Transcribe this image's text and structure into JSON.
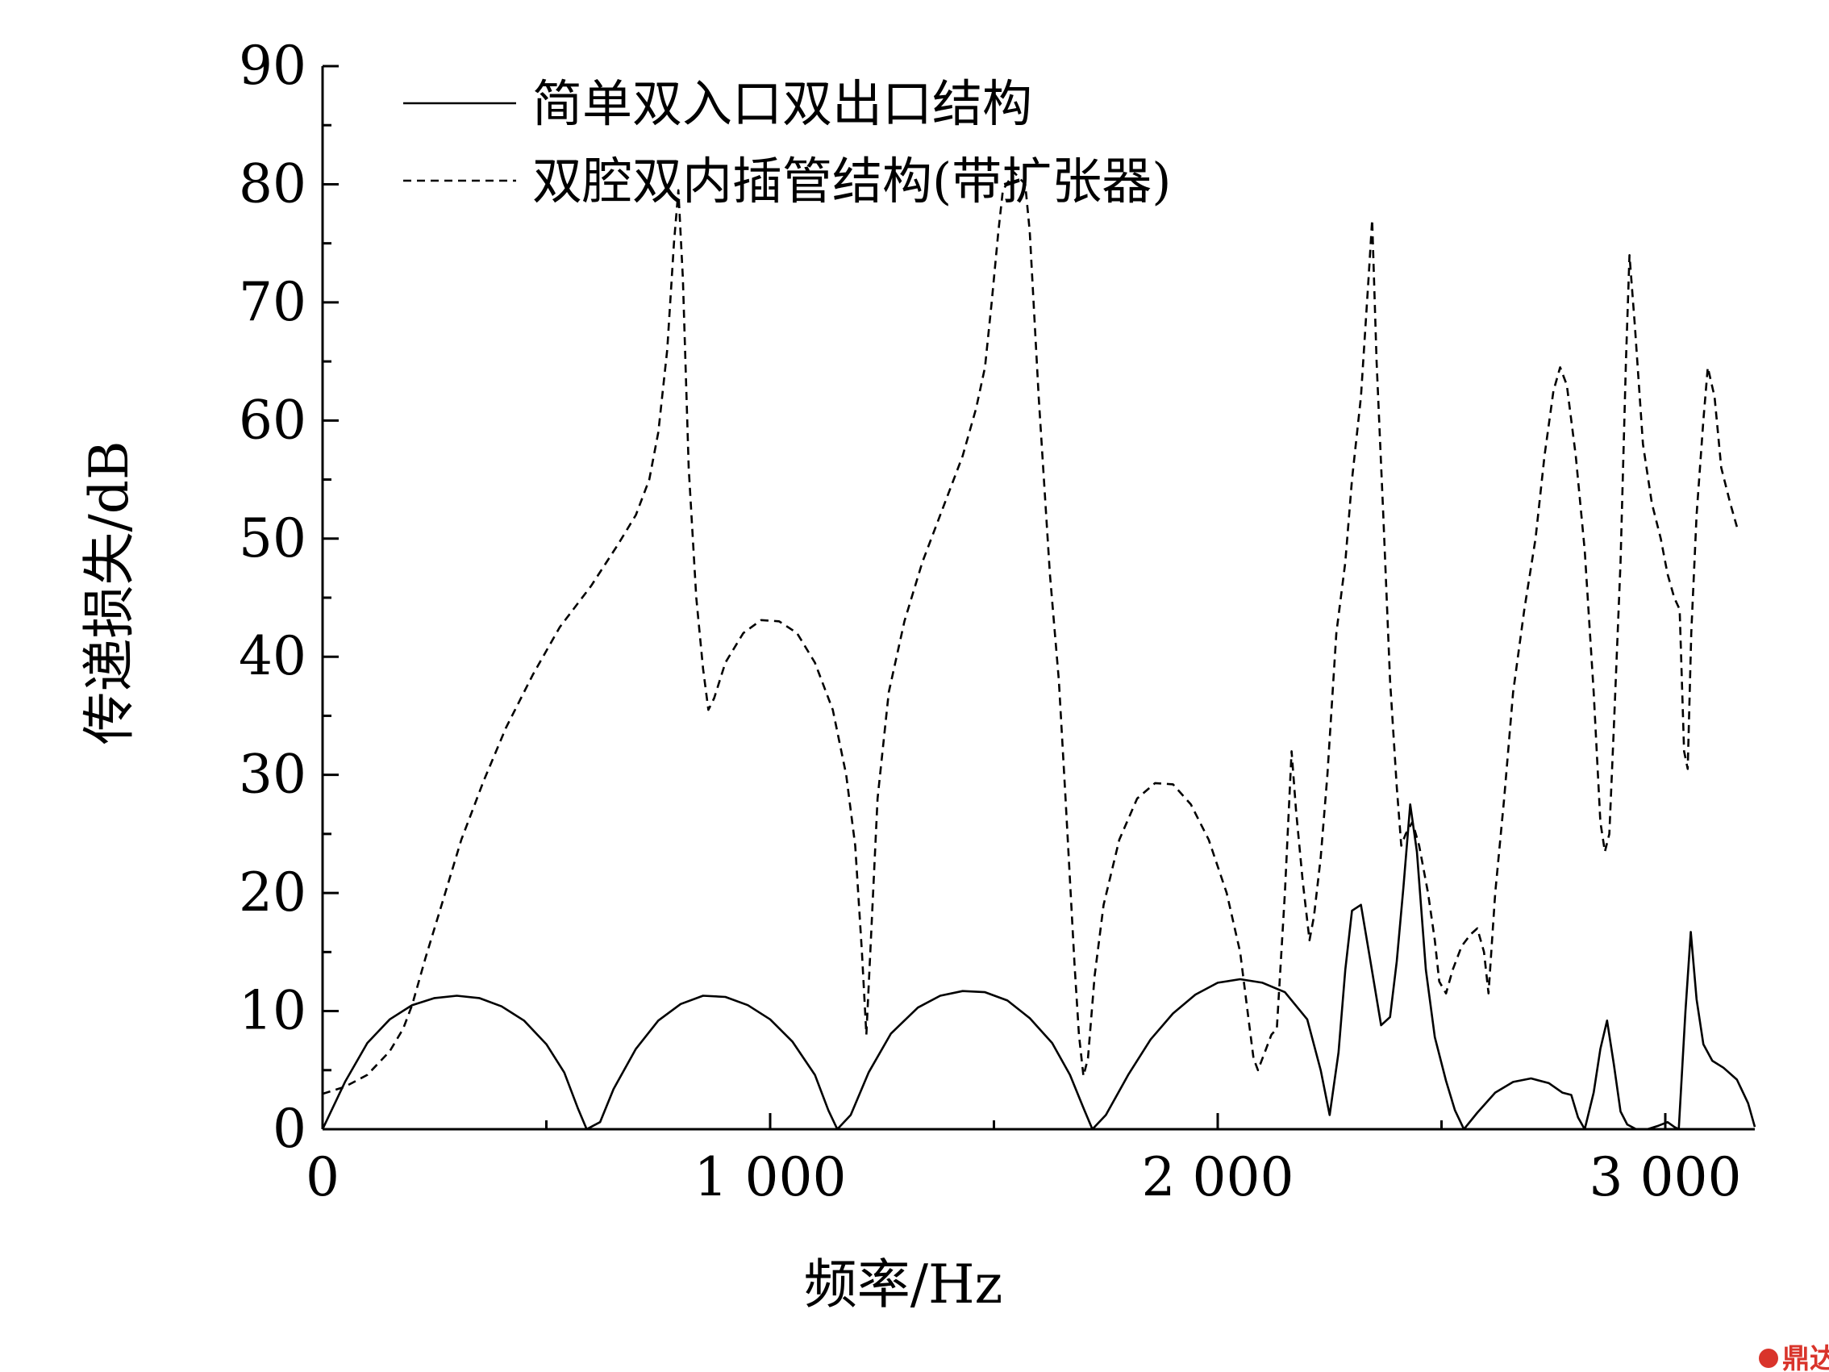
{
  "chart_data": {
    "type": "line",
    "xlabel": "频率/Hz",
    "ylabel": "传递损失/dB",
    "xlim": [
      0,
      3200
    ],
    "ylim": [
      0,
      90
    ],
    "x_ticks": [
      0,
      1000,
      2000,
      3000
    ],
    "x_tick_labels": [
      "0",
      "1 000",
      "2 000",
      "3 000"
    ],
    "x_minor_ticks": [
      500,
      1500,
      2500
    ],
    "y_ticks": [
      0,
      10,
      20,
      30,
      40,
      50,
      60,
      70,
      80,
      90
    ],
    "y_tick_labels": [
      "0",
      "10",
      "20",
      "30",
      "40",
      "50",
      "60",
      "70",
      "80",
      "90"
    ],
    "legend_position": "top-left",
    "series": [
      {
        "name": "简单双入口双出口结构",
        "style": "solid",
        "points": [
          [
            0,
            0
          ],
          [
            50,
            4
          ],
          [
            100,
            7.3
          ],
          [
            150,
            9.3
          ],
          [
            200,
            10.5
          ],
          [
            250,
            11.1
          ],
          [
            300,
            11.3
          ],
          [
            350,
            11.1
          ],
          [
            400,
            10.4
          ],
          [
            450,
            9.2
          ],
          [
            500,
            7.2
          ],
          [
            540,
            4.8
          ],
          [
            570,
            1.8
          ],
          [
            590,
            0
          ],
          [
            620,
            0.6
          ],
          [
            650,
            3.4
          ],
          [
            700,
            6.8
          ],
          [
            750,
            9.2
          ],
          [
            800,
            10.6
          ],
          [
            850,
            11.3
          ],
          [
            900,
            11.2
          ],
          [
            950,
            10.5
          ],
          [
            1000,
            9.3
          ],
          [
            1050,
            7.4
          ],
          [
            1100,
            4.6
          ],
          [
            1130,
            1.6
          ],
          [
            1150,
            0
          ],
          [
            1180,
            1.2
          ],
          [
            1220,
            4.8
          ],
          [
            1270,
            8.1
          ],
          [
            1330,
            10.3
          ],
          [
            1380,
            11.3
          ],
          [
            1430,
            11.7
          ],
          [
            1480,
            11.6
          ],
          [
            1530,
            10.9
          ],
          [
            1580,
            9.4
          ],
          [
            1630,
            7.3
          ],
          [
            1670,
            4.6
          ],
          [
            1700,
            1.8
          ],
          [
            1720,
            0
          ],
          [
            1750,
            1.2
          ],
          [
            1800,
            4.6
          ],
          [
            1850,
            7.6
          ],
          [
            1900,
            9.8
          ],
          [
            1950,
            11.4
          ],
          [
            2000,
            12.4
          ],
          [
            2050,
            12.7
          ],
          [
            2100,
            12.4
          ],
          [
            2150,
            11.6
          ],
          [
            2200,
            9.3
          ],
          [
            2230,
            5
          ],
          [
            2250,
            1.2
          ],
          [
            2270,
            6.5
          ],
          [
            2285,
            13.5
          ],
          [
            2300,
            18.5
          ],
          [
            2320,
            19
          ],
          [
            2340,
            14.5
          ],
          [
            2365,
            8.8
          ],
          [
            2385,
            9.5
          ],
          [
            2400,
            14.2
          ],
          [
            2415,
            20.5
          ],
          [
            2430,
            27.5
          ],
          [
            2445,
            23.5
          ],
          [
            2465,
            13.5
          ],
          [
            2485,
            7.8
          ],
          [
            2510,
            4.1
          ],
          [
            2530,
            1.6
          ],
          [
            2550,
            0
          ],
          [
            2580,
            1.4
          ],
          [
            2620,
            3.1
          ],
          [
            2660,
            4
          ],
          [
            2700,
            4.3
          ],
          [
            2740,
            3.9
          ],
          [
            2770,
            3.1
          ],
          [
            2790,
            2.9
          ],
          [
            2805,
            1
          ],
          [
            2820,
            0
          ],
          [
            2840,
            3.1
          ],
          [
            2855,
            6.8
          ],
          [
            2870,
            9.2
          ],
          [
            2885,
            5.5
          ],
          [
            2900,
            1.5
          ],
          [
            2915,
            0.4
          ],
          [
            2935,
            0
          ],
          [
            2960,
            0
          ],
          [
            2985,
            0.3
          ],
          [
            3005,
            0.6
          ],
          [
            3020,
            0.2
          ],
          [
            3030,
            0
          ],
          [
            3045,
            10
          ],
          [
            3057,
            16.7
          ],
          [
            3070,
            11
          ],
          [
            3085,
            7.2
          ],
          [
            3105,
            5.8
          ],
          [
            3130,
            5.2
          ],
          [
            3160,
            4.2
          ],
          [
            3185,
            2.2
          ],
          [
            3200,
            0.2
          ]
        ]
      },
      {
        "name": "双腔双内插管结构(带扩张器)",
        "style": "dashed",
        "points": [
          [
            0,
            3
          ],
          [
            50,
            3.6
          ],
          [
            100,
            4.6
          ],
          [
            150,
            6.6
          ],
          [
            180,
            8.5
          ],
          [
            200,
            10.5
          ],
          [
            230,
            14.5
          ],
          [
            270,
            19.5
          ],
          [
            310,
            24.5
          ],
          [
            360,
            29.5
          ],
          [
            410,
            34
          ],
          [
            470,
            38.5
          ],
          [
            530,
            42.5
          ],
          [
            600,
            46
          ],
          [
            660,
            49.5
          ],
          [
            700,
            52
          ],
          [
            730,
            55
          ],
          [
            750,
            59
          ],
          [
            770,
            66
          ],
          [
            785,
            75
          ],
          [
            795,
            79.5
          ],
          [
            805,
            72
          ],
          [
            818,
            56
          ],
          [
            835,
            45
          ],
          [
            850,
            39
          ],
          [
            862,
            35.5
          ],
          [
            875,
            36.5
          ],
          [
            900,
            39.5
          ],
          [
            940,
            42
          ],
          [
            980,
            43.1
          ],
          [
            1020,
            43
          ],
          [
            1060,
            42
          ],
          [
            1100,
            39.5
          ],
          [
            1140,
            35.5
          ],
          [
            1170,
            30
          ],
          [
            1190,
            24
          ],
          [
            1205,
            15
          ],
          [
            1215,
            8
          ],
          [
            1225,
            16
          ],
          [
            1240,
            28
          ],
          [
            1265,
            37
          ],
          [
            1300,
            43
          ],
          [
            1340,
            48
          ],
          [
            1390,
            53
          ],
          [
            1430,
            57
          ],
          [
            1460,
            61
          ],
          [
            1480,
            64.5
          ],
          [
            1495,
            70
          ],
          [
            1510,
            76
          ],
          [
            1520,
            79.5
          ],
          [
            1545,
            81
          ],
          [
            1570,
            80
          ],
          [
            1580,
            76
          ],
          [
            1600,
            62
          ],
          [
            1625,
            47
          ],
          [
            1645,
            38
          ],
          [
            1660,
            28
          ],
          [
            1680,
            14
          ],
          [
            1690,
            8
          ],
          [
            1700,
            4.5
          ],
          [
            1710,
            6
          ],
          [
            1725,
            13
          ],
          [
            1745,
            19
          ],
          [
            1780,
            24.5
          ],
          [
            1820,
            28
          ],
          [
            1860,
            29.3
          ],
          [
            1900,
            29.2
          ],
          [
            1940,
            27.5
          ],
          [
            1980,
            24.5
          ],
          [
            2020,
            20
          ],
          [
            2050,
            15
          ],
          [
            2070,
            9
          ],
          [
            2080,
            6
          ],
          [
            2090,
            5
          ],
          [
            2105,
            6.5
          ],
          [
            2120,
            8
          ],
          [
            2132,
            8.5
          ],
          [
            2150,
            20
          ],
          [
            2165,
            32
          ],
          [
            2175,
            27
          ],
          [
            2190,
            21
          ],
          [
            2205,
            16
          ],
          [
            2215,
            18
          ],
          [
            2230,
            23
          ],
          [
            2245,
            30
          ],
          [
            2265,
            42
          ],
          [
            2285,
            48
          ],
          [
            2300,
            55
          ],
          [
            2320,
            62
          ],
          [
            2337,
            72
          ],
          [
            2345,
            77
          ],
          [
            2355,
            65
          ],
          [
            2370,
            52
          ],
          [
            2385,
            38
          ],
          [
            2400,
            29
          ],
          [
            2410,
            24
          ],
          [
            2420,
            25
          ],
          [
            2435,
            26
          ],
          [
            2450,
            24
          ],
          [
            2470,
            20
          ],
          [
            2485,
            16
          ],
          [
            2495,
            12.5
          ],
          [
            2510,
            11.5
          ],
          [
            2525,
            13.5
          ],
          [
            2545,
            15.5
          ],
          [
            2565,
            16.5
          ],
          [
            2580,
            17
          ],
          [
            2595,
            15
          ],
          [
            2605,
            11.5
          ],
          [
            2620,
            20
          ],
          [
            2640,
            28
          ],
          [
            2660,
            37
          ],
          [
            2685,
            44
          ],
          [
            2710,
            50
          ],
          [
            2730,
            57
          ],
          [
            2750,
            62.5
          ],
          [
            2765,
            64.5
          ],
          [
            2780,
            63
          ],
          [
            2800,
            57
          ],
          [
            2820,
            49
          ],
          [
            2840,
            37
          ],
          [
            2855,
            26
          ],
          [
            2865,
            23.5
          ],
          [
            2875,
            25
          ],
          [
            2885,
            34
          ],
          [
            2900,
            48
          ],
          [
            2912,
            65
          ],
          [
            2920,
            74
          ],
          [
            2932,
            68
          ],
          [
            2950,
            58
          ],
          [
            2970,
            53
          ],
          [
            2990,
            50
          ],
          [
            3005,
            47
          ],
          [
            3020,
            45
          ],
          [
            3032,
            44
          ],
          [
            3042,
            32
          ],
          [
            3050,
            30.5
          ],
          [
            3058,
            42
          ],
          [
            3070,
            52
          ],
          [
            3085,
            60
          ],
          [
            3095,
            64.5
          ],
          [
            3110,
            62
          ],
          [
            3125,
            56
          ],
          [
            3145,
            53
          ],
          [
            3160,
            51
          ]
        ]
      }
    ]
  },
  "watermark": {
    "text": "鼎达信"
  }
}
